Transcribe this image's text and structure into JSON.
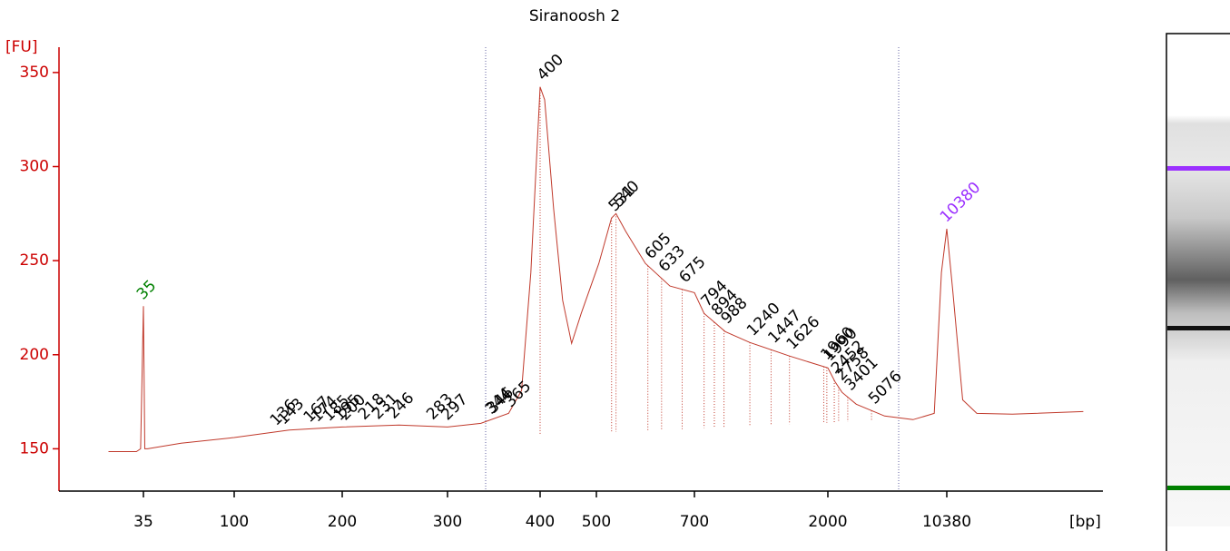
{
  "chart_data": {
    "type": "line",
    "title": "Siranoosh 2",
    "y_label": "[FU]",
    "x_label": "[bp]",
    "ylim": [
      128,
      362
    ],
    "yticks": [
      150,
      200,
      250,
      300,
      350
    ],
    "xticks": [
      35,
      100,
      200,
      300,
      400,
      500,
      700,
      2000,
      10380
    ],
    "trace": {
      "color": "#c0392b",
      "x": [
        10,
        30,
        33,
        35,
        36,
        38,
        62,
        100,
        151,
        200,
        254,
        300,
        336,
        366,
        380,
        390,
        400,
        408,
        424,
        440,
        456,
        473,
        505,
        531,
        540,
        560,
        600,
        650,
        700,
        794,
        900,
        1000,
        1240,
        1626,
        2000,
        2500,
        3000,
        4000,
        5076,
        6000,
        8000,
        9500,
        10000,
        10380,
        10800,
        11500,
        12500,
        15000,
        20000
      ],
      "values": [
        148.5,
        148.5,
        150,
        225.8,
        150,
        150,
        153,
        156,
        160,
        161.6,
        162.6,
        161.6,
        163.5,
        168.8,
        181,
        243.7,
        342.3,
        335.5,
        277.5,
        229,
        206,
        222,
        248.5,
        272.7,
        275,
        265.5,
        248.5,
        236.5,
        233,
        222,
        217,
        212.3,
        206.5,
        199.3,
        193,
        185.7,
        180,
        173.7,
        170.3,
        167.4,
        165.5,
        168.8,
        243.7,
        266.9,
        234,
        176,
        168.8,
        168.4,
        169.8
      ]
    },
    "markers": [
      {
        "bp": 35,
        "color": "#008000"
      },
      {
        "bp": 10380,
        "color": "#9b30ff"
      }
    ],
    "peaks": [
      136,
      143,
      167,
      174,
      185,
      195,
      200,
      218,
      231,
      246,
      283,
      297,
      344,
      346,
      365,
      400,
      531,
      540,
      605,
      633,
      675,
      794,
      894,
      988,
      1240,
      1447,
      1626,
      1960,
      1990,
      2452,
      2758,
      3401,
      5076
    ]
  }
}
